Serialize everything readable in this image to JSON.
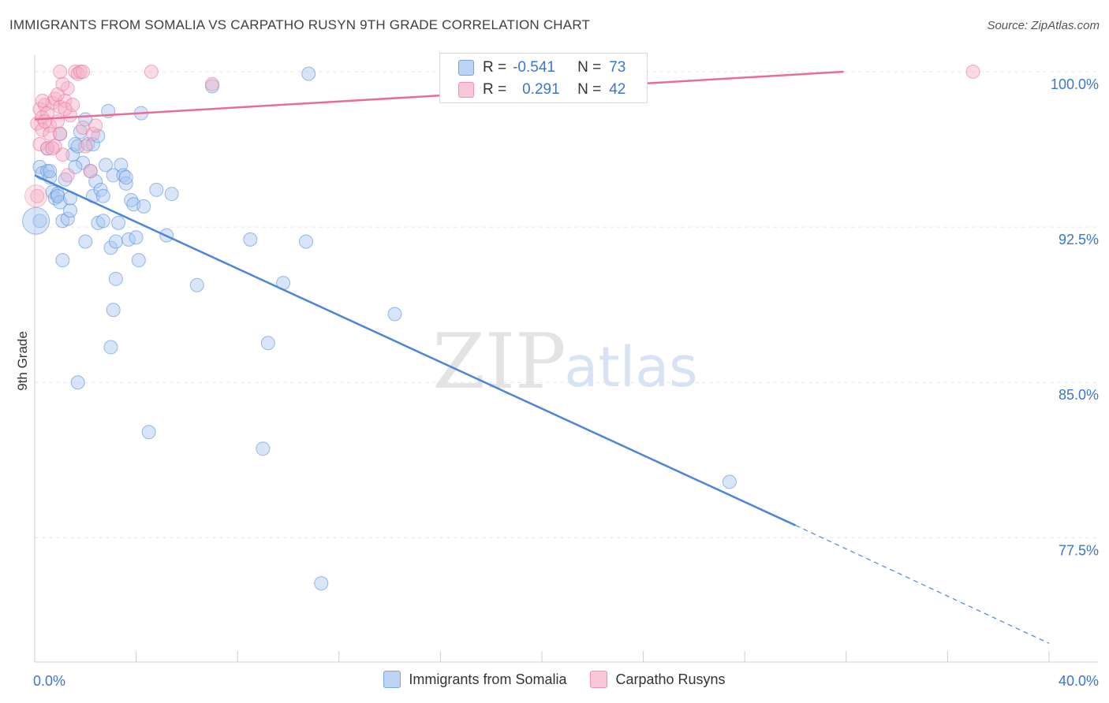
{
  "title": "IMMIGRANTS FROM SOMALIA VS CARPATHO RUSYN 9TH GRADE CORRELATION CHART",
  "source": "Source: ZipAtlas.com",
  "watermark": {
    "zip": "ZIP",
    "atlas": "atlas"
  },
  "stats": {
    "r_label": "R =",
    "n_label": "N =",
    "series": [
      {
        "r": "-0.541",
        "n": "73",
        "color": "#4a86d8"
      },
      {
        "r": "0.291",
        "n": "42",
        "color": "#e86d96"
      }
    ]
  },
  "legend": [
    "Immigrants from Somalia",
    "Carpatho Rusyns"
  ],
  "chart_data": {
    "type": "scatter",
    "title": "IMMIGRANTS FROM SOMALIA VS CARPATHO RUSYN 9TH GRADE CORRELATION CHART",
    "xlabel": "",
    "ylabel": "9th Grade",
    "xlim": [
      0,
      40
    ],
    "ylim": [
      71.5,
      100.8
    ],
    "x_tick_labels": [
      "0.0%",
      "40.0%"
    ],
    "y_ticks": [
      77.5,
      85.0,
      92.5,
      100.0
    ],
    "y_tick_labels": [
      "77.5%",
      "85.0%",
      "92.5%",
      "100.0%"
    ],
    "grid": true,
    "series": [
      {
        "name": "Immigrants from Somalia",
        "color": "#4a86d8",
        "fill": "#a9c6f0",
        "trend": {
          "x": [
            0,
            30.0
          ],
          "y": [
            95.0,
            78.1
          ],
          "dashed_to": [
            40,
            72.4
          ]
        },
        "points": [
          [
            0.2,
            95.4
          ],
          [
            0.3,
            95.1
          ],
          [
            0.5,
            95.2
          ],
          [
            0.6,
            94.9
          ],
          [
            0.7,
            94.2
          ],
          [
            0.8,
            93.9
          ],
          [
            0.9,
            94.1
          ],
          [
            1.0,
            93.7
          ],
          [
            1.1,
            92.8
          ],
          [
            1.2,
            94.8
          ],
          [
            1.3,
            92.9
          ],
          [
            1.4,
            93.3
          ],
          [
            1.5,
            96.0
          ],
          [
            1.6,
            96.5
          ],
          [
            1.7,
            96.4
          ],
          [
            1.8,
            97.1
          ],
          [
            1.9,
            95.6
          ],
          [
            2.0,
            97.7
          ],
          [
            2.1,
            96.5
          ],
          [
            2.2,
            95.2
          ],
          [
            2.3,
            94.0
          ],
          [
            2.4,
            94.7
          ],
          [
            2.5,
            92.7
          ],
          [
            2.6,
            94.3
          ],
          [
            2.7,
            92.8
          ],
          [
            2.8,
            95.5
          ],
          [
            2.9,
            98.1
          ],
          [
            3.0,
            91.5
          ],
          [
            3.1,
            95.0
          ],
          [
            3.2,
            91.8
          ],
          [
            3.3,
            92.7
          ],
          [
            3.4,
            95.5
          ],
          [
            3.5,
            95.0
          ],
          [
            3.6,
            94.6
          ],
          [
            3.7,
            91.9
          ],
          [
            3.8,
            93.8
          ],
          [
            3.9,
            93.6
          ],
          [
            4.0,
            92.0
          ],
          [
            4.2,
            98.0
          ],
          [
            4.3,
            93.5
          ],
          [
            4.8,
            94.3
          ],
          [
            5.2,
            92.1
          ],
          [
            5.4,
            94.1
          ],
          [
            6.4,
            89.7
          ],
          [
            7.0,
            99.3
          ],
          [
            8.5,
            91.9
          ],
          [
            9.0,
            81.8
          ],
          [
            9.2,
            86.9
          ],
          [
            9.8,
            89.8
          ],
          [
            10.7,
            91.8
          ],
          [
            10.8,
            99.9
          ],
          [
            11.3,
            75.3
          ],
          [
            14.2,
            88.3
          ],
          [
            27.4,
            80.2
          ],
          [
            1.0,
            97.0
          ],
          [
            2.3,
            96.5
          ],
          [
            0.5,
            96.3
          ],
          [
            1.7,
            85.0
          ],
          [
            3.1,
            88.5
          ],
          [
            3.2,
            90.0
          ],
          [
            2.0,
            91.8
          ],
          [
            4.5,
            82.6
          ],
          [
            1.1,
            90.9
          ],
          [
            4.1,
            90.9
          ],
          [
            0.2,
            92.8
          ],
          [
            0.9,
            94.0
          ],
          [
            2.5,
            96.9
          ],
          [
            3.6,
            94.9
          ],
          [
            1.6,
            95.4
          ],
          [
            3.0,
            86.7
          ],
          [
            2.7,
            94.0
          ],
          [
            0.6,
            95.2
          ],
          [
            1.4,
            93.9
          ]
        ]
      },
      {
        "name": "Carpatho Rusyns",
        "color": "#e86d96",
        "fill": "#f4b0c6",
        "trend": {
          "x": [
            0,
            31.9
          ],
          "y": [
            97.7,
            100.0
          ]
        },
        "points": [
          [
            0.1,
            97.5
          ],
          [
            0.2,
            98.2
          ],
          [
            0.3,
            97.8
          ],
          [
            0.4,
            98.4
          ],
          [
            0.5,
            98.0
          ],
          [
            0.6,
            97.4
          ],
          [
            0.7,
            98.5
          ],
          [
            0.8,
            98.7
          ],
          [
            0.9,
            97.6
          ],
          [
            1.0,
            98.3
          ],
          [
            1.1,
            96.0
          ],
          [
            1.2,
            98.6
          ],
          [
            1.3,
            99.2
          ],
          [
            1.4,
            97.9
          ],
          [
            1.5,
            98.4
          ],
          [
            1.6,
            100.0
          ],
          [
            1.7,
            99.9
          ],
          [
            1.8,
            100.0
          ],
          [
            1.9,
            97.3
          ],
          [
            2.0,
            96.4
          ],
          [
            2.2,
            95.2
          ],
          [
            2.3,
            97.0
          ],
          [
            2.4,
            97.4
          ],
          [
            0.1,
            94.0
          ],
          [
            0.2,
            96.5
          ],
          [
            0.3,
            97.2
          ],
          [
            0.5,
            96.3
          ],
          [
            0.6,
            97.0
          ],
          [
            0.8,
            96.4
          ],
          [
            0.9,
            98.9
          ],
          [
            1.0,
            97.0
          ],
          [
            1.1,
            99.4
          ],
          [
            1.3,
            95.0
          ],
          [
            1.0,
            100.0
          ],
          [
            1.9,
            100.0
          ],
          [
            4.6,
            100.0
          ],
          [
            7.0,
            99.4
          ],
          [
            37.0,
            100.0
          ],
          [
            0.4,
            97.6
          ],
          [
            0.7,
            96.3
          ],
          [
            1.2,
            98.2
          ],
          [
            0.3,
            98.6
          ]
        ]
      }
    ]
  }
}
